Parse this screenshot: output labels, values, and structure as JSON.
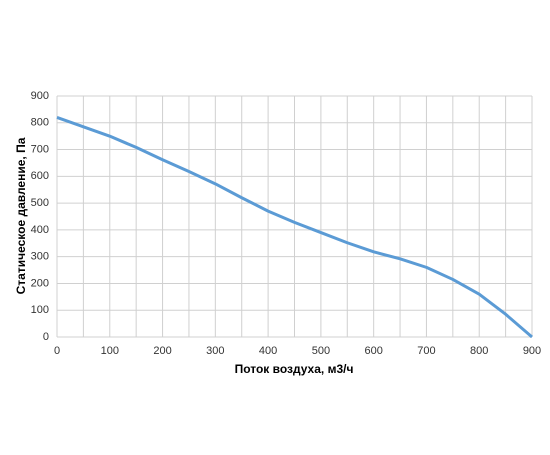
{
  "chart_data": {
    "type": "line",
    "x_label": "Поток воздуха, м3/ч",
    "y_label": "Статическое давление, Па",
    "x": [
      0,
      50,
      100,
      150,
      200,
      250,
      300,
      350,
      400,
      450,
      500,
      550,
      600,
      650,
      700,
      750,
      800,
      850,
      900
    ],
    "series": [
      {
        "color": "#5b9bd5",
        "values": [
          820,
          785,
          750,
          708,
          662,
          618,
          572,
          520,
          470,
          428,
          390,
          352,
          318,
          292,
          260,
          215,
          160,
          85,
          0
        ]
      }
    ],
    "xlim": [
      0,
      900
    ],
    "ylim": [
      0,
      900
    ],
    "xticks": [
      0,
      100,
      200,
      300,
      400,
      500,
      600,
      700,
      800,
      900
    ],
    "x_minor_ticks": [
      50,
      150,
      250,
      350,
      450,
      550,
      650,
      750,
      850
    ],
    "yticks": [
      0,
      100,
      200,
      300,
      400,
      500,
      600,
      700,
      800,
      900
    ],
    "grid": true
  }
}
